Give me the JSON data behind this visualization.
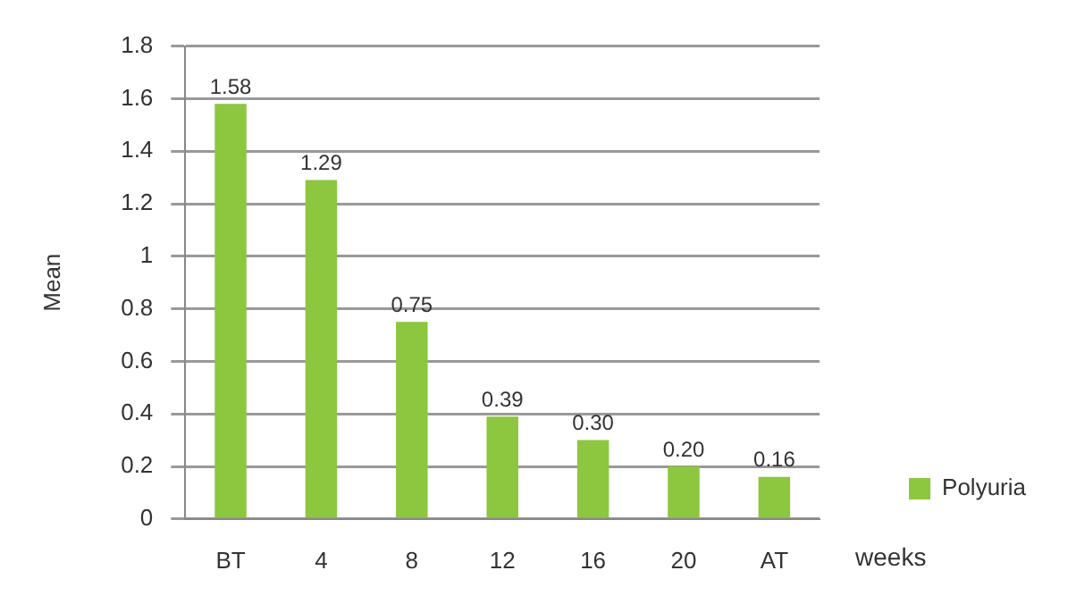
{
  "chart_data": {
    "type": "bar",
    "ylabel": "Mean",
    "xlabel": "weeks",
    "categories": [
      "BT",
      "4",
      "8",
      "12",
      "16",
      "20",
      "AT"
    ],
    "series": [
      {
        "name": "Polyuria",
        "color": "#8dc63f",
        "values": [
          1.58,
          1.29,
          0.75,
          0.39,
          0.3,
          0.2,
          0.16
        ],
        "value_labels": [
          "1.58",
          "1.29",
          "0.75",
          "0.39",
          "0.30",
          "0.20",
          "0.16"
        ]
      }
    ],
    "ylim": [
      0,
      1.8
    ],
    "yticks": [
      0,
      0.2,
      0.4,
      0.6,
      0.8,
      1,
      1.2,
      1.4,
      1.6,
      1.8
    ],
    "grid": "y",
    "legend": "bottom right"
  }
}
